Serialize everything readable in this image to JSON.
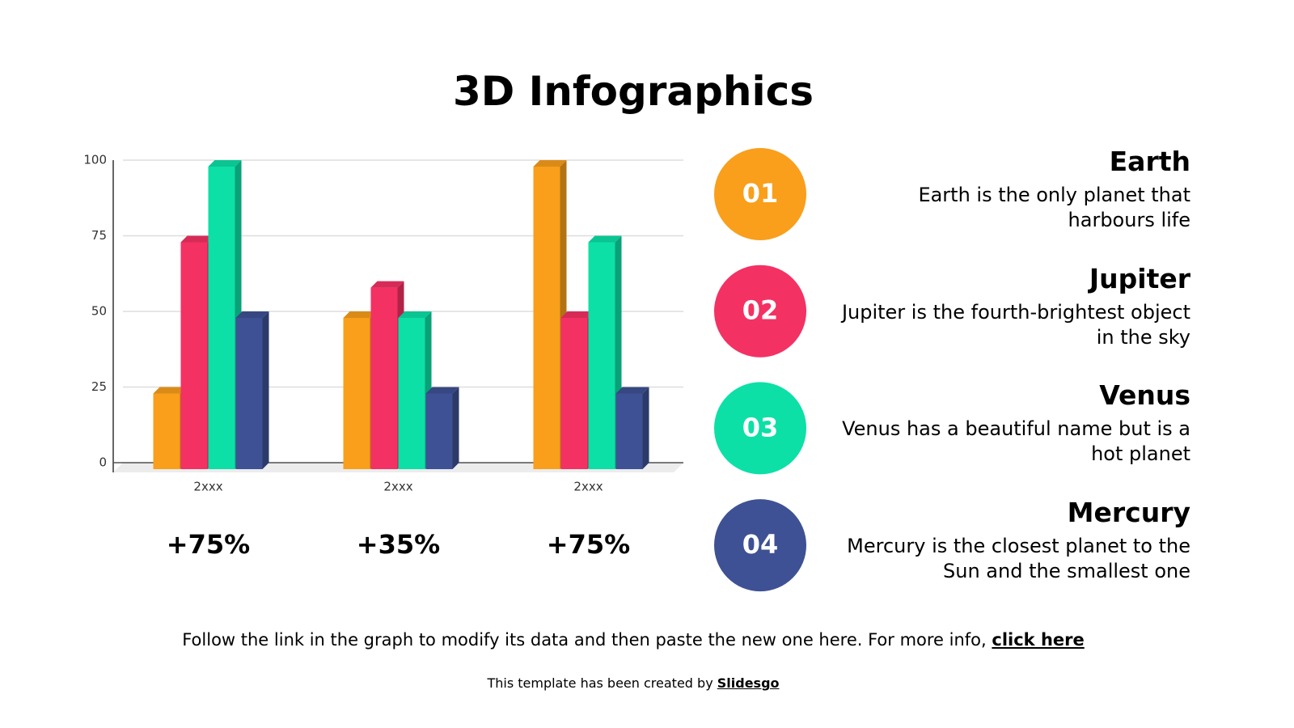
{
  "chart_data": {
    "type": "bar3d",
    "title": "3D Infographics",
    "categories": [
      "2xxx",
      "2xxx",
      "2xxx"
    ],
    "series": [
      {
        "name": "Earth",
        "number": "01",
        "description": "Earth is the only planet that harbours life",
        "color": "#f99f1b",
        "values": [
          25,
          50,
          100
        ]
      },
      {
        "name": "Jupiter",
        "number": "02",
        "description": "Jupiter is the fourth-brightest object in the sky",
        "color": "#f43163",
        "values": [
          75,
          60,
          50
        ]
      },
      {
        "name": "Venus",
        "number": "03",
        "description": "Venus has a beautiful name but is a hot planet",
        "color": "#0ce0a7",
        "values": [
          100,
          50,
          75
        ]
      },
      {
        "name": "Mercury",
        "number": "04",
        "description": "Mercury is the closest planet to the Sun and the smallest one",
        "color": "#3e5194",
        "values": [
          50,
          25,
          25
        ]
      }
    ],
    "group_labels": [
      "+75%",
      "+35%",
      "+75%"
    ],
    "ylim": [
      0,
      100
    ],
    "yticks": [
      0,
      25,
      50,
      75,
      100
    ],
    "grid": true
  },
  "footer": {
    "text": "Follow the link in the graph to modify its data and then paste the new one here. For more info, ",
    "link": "click here"
  },
  "credit": {
    "text": "This template has been created by ",
    "link": "Slidesgo"
  }
}
